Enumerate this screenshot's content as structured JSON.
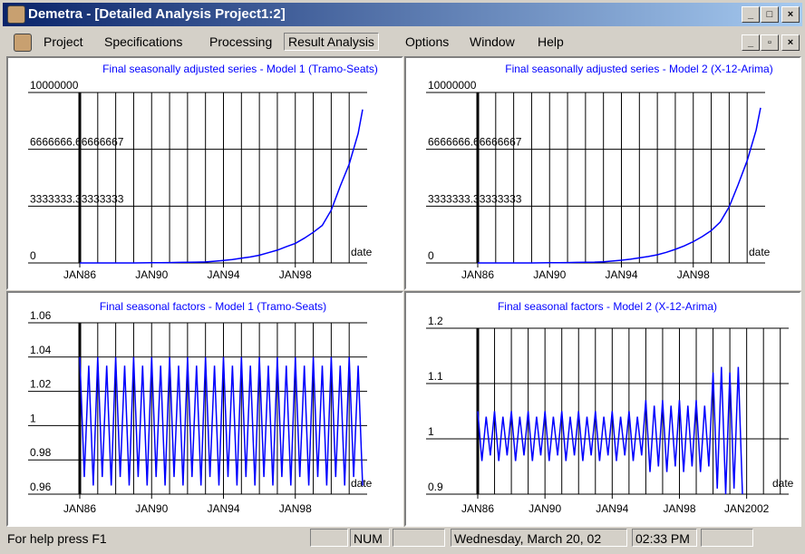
{
  "window": {
    "title": "Demetra - [Detailed Analysis Project1:2]"
  },
  "menu": [
    "Project",
    "Specifications",
    "Processing",
    "Result Analysis",
    "Options",
    "Window",
    "Help"
  ],
  "chart_data": [
    {
      "type": "line",
      "title": "Final seasonally adjusted series - Model 1 (Tramo-Seats)",
      "x_label": "date",
      "x": [
        1986,
        1986.5,
        1987,
        1987.5,
        1988,
        1988.5,
        1989,
        1989.5,
        1990,
        1990.5,
        1991,
        1991.5,
        1992,
        1992.5,
        1993,
        1993.5,
        1994,
        1994.5,
        1995,
        1995.5,
        1996,
        1996.5,
        1997,
        1997.5,
        1998,
        1998.5,
        1999,
        1999.5,
        2000,
        2000.5,
        2001,
        2001.5,
        2001.75
      ],
      "series": [
        {
          "color": "#0000ff",
          "values": [
            0,
            0,
            0,
            0,
            0,
            0,
            0,
            5000,
            10000,
            15000,
            20000,
            30000,
            40000,
            50000,
            60000,
            100000,
            150000,
            200000,
            280000,
            350000,
            450000,
            600000,
            750000,
            950000,
            1150000,
            1450000,
            1800000,
            2200000,
            3100000,
            4500000,
            5800000,
            7600000,
            9000000
          ]
        }
      ],
      "xlim": [
        1986,
        2002
      ],
      "xticks": [
        {
          "value": 1986,
          "label": "JAN86"
        },
        {
          "value": 1990,
          "label": "JAN90"
        },
        {
          "value": 1994,
          "label": "JAN94"
        },
        {
          "value": 1998,
          "label": "JAN98"
        }
      ],
      "xgrid": [
        1986,
        1987,
        1988,
        1989,
        1990,
        1991,
        1992,
        1993,
        1994,
        1995,
        1996,
        1997,
        1998,
        1999,
        2000,
        2001
      ],
      "ylim": [
        0,
        10000000
      ],
      "yticks": [
        0,
        3333333.33333333,
        6666666.66666667,
        10000000
      ]
    },
    {
      "type": "line",
      "title": "Final seasonally adjusted series - Model 2 (X-12-Arima)",
      "x_label": "date",
      "x": [
        1986,
        1986.5,
        1987,
        1987.5,
        1988,
        1988.5,
        1989,
        1989.5,
        1990,
        1990.5,
        1991,
        1991.5,
        1992,
        1992.5,
        1993,
        1993.5,
        1994,
        1994.5,
        1995,
        1995.5,
        1996,
        1996.5,
        1997,
        1997.5,
        1998,
        1998.5,
        1999,
        1999.5,
        2000,
        2000.5,
        2001,
        2001.5,
        2001.75
      ],
      "series": [
        {
          "color": "#0000ff",
          "values": [
            0,
            0,
            0,
            0,
            0,
            0,
            0,
            5000,
            10000,
            15000,
            20000,
            30000,
            40000,
            50000,
            70000,
            110000,
            160000,
            220000,
            300000,
            380000,
            480000,
            620000,
            800000,
            1000000,
            1250000,
            1550000,
            1900000,
            2400000,
            3300000,
            4600000,
            6000000,
            7800000,
            9100000
          ]
        }
      ],
      "xlim": [
        1986,
        2002
      ],
      "xticks": [
        {
          "value": 1986,
          "label": "JAN86"
        },
        {
          "value": 1990,
          "label": "JAN90"
        },
        {
          "value": 1994,
          "label": "JAN94"
        },
        {
          "value": 1998,
          "label": "JAN98"
        }
      ],
      "xgrid": [
        1986,
        1987,
        1988,
        1989,
        1990,
        1991,
        1992,
        1993,
        1994,
        1995,
        1996,
        1997,
        1998,
        1999,
        2000,
        2001
      ],
      "ylim": [
        0,
        10000000
      ],
      "yticks": [
        0,
        3333333.33333333,
        6666666.66666667,
        10000000
      ]
    },
    {
      "type": "line",
      "title": "Final seasonal factors - Model 1 (Tramo-Seats)",
      "x_label": "date",
      "x": [
        1986,
        1986.25,
        1986.5,
        1986.75,
        1987,
        1987.25,
        1987.5,
        1987.75,
        1988,
        1988.25,
        1988.5,
        1988.75,
        1989,
        1989.25,
        1989.5,
        1989.75,
        1990,
        1990.25,
        1990.5,
        1990.75,
        1991,
        1991.25,
        1991.5,
        1991.75,
        1992,
        1992.25,
        1992.5,
        1992.75,
        1993,
        1993.25,
        1993.5,
        1993.75,
        1994,
        1994.25,
        1994.5,
        1994.75,
        1995,
        1995.25,
        1995.5,
        1995.75,
        1996,
        1996.25,
        1996.5,
        1996.75,
        1997,
        1997.25,
        1997.5,
        1997.75,
        1998,
        1998.25,
        1998.5,
        1998.75,
        1999,
        1999.25,
        1999.5,
        1999.75,
        2000,
        2000.25,
        2000.5,
        2000.75,
        2001,
        2001.25,
        2001.5,
        2001.75
      ],
      "series": [
        {
          "color": "#0000ff",
          "values": [
            1.04,
            0.97,
            1.035,
            0.965,
            1.04,
            0.97,
            1.035,
            0.965,
            1.04,
            0.97,
            1.035,
            0.965,
            1.04,
            0.97,
            1.035,
            0.965,
            1.04,
            0.97,
            1.035,
            0.965,
            1.04,
            0.97,
            1.035,
            0.965,
            1.04,
            0.97,
            1.035,
            0.965,
            1.04,
            0.97,
            1.035,
            0.965,
            1.04,
            0.97,
            1.035,
            0.965,
            1.04,
            0.97,
            1.035,
            0.965,
            1.04,
            0.97,
            1.035,
            0.965,
            1.04,
            0.97,
            1.035,
            0.965,
            1.04,
            0.97,
            1.035,
            0.965,
            1.04,
            0.97,
            1.035,
            0.965,
            1.04,
            0.97,
            1.035,
            0.965,
            1.04,
            0.97,
            1.035,
            0.965
          ]
        }
      ],
      "xlim": [
        1986,
        2002
      ],
      "xticks": [
        {
          "value": 1986,
          "label": "JAN86"
        },
        {
          "value": 1990,
          "label": "JAN90"
        },
        {
          "value": 1994,
          "label": "JAN94"
        },
        {
          "value": 1998,
          "label": "JAN98"
        }
      ],
      "xgrid": [
        1986,
        1987,
        1988,
        1989,
        1990,
        1991,
        1992,
        1993,
        1994,
        1995,
        1996,
        1997,
        1998,
        1999,
        2000,
        2001
      ],
      "ylim": [
        0.96,
        1.06
      ],
      "yticks": [
        0.96,
        0.98,
        1,
        1.02,
        1.04,
        1.06
      ]
    },
    {
      "type": "line",
      "title": "Final seasonal factors - Model 2 (X-12-Arima)",
      "x_label": "date",
      "x": [
        1986,
        1986.25,
        1986.5,
        1986.75,
        1987,
        1987.25,
        1987.5,
        1987.75,
        1988,
        1988.25,
        1988.5,
        1988.75,
        1989,
        1989.25,
        1989.5,
        1989.75,
        1990,
        1990.25,
        1990.5,
        1990.75,
        1991,
        1991.25,
        1991.5,
        1991.75,
        1992,
        1992.25,
        1992.5,
        1992.75,
        1993,
        1993.25,
        1993.5,
        1993.75,
        1994,
        1994.25,
        1994.5,
        1994.75,
        1995,
        1995.25,
        1995.5,
        1995.75,
        1996,
        1996.25,
        1996.5,
        1996.75,
        1997,
        1997.25,
        1997.5,
        1997.75,
        1998,
        1998.25,
        1998.5,
        1998.75,
        1999,
        1999.25,
        1999.5,
        1999.75,
        2000,
        2000.25,
        2000.5,
        2000.75,
        2001,
        2001.25,
        2001.5,
        2001.75
      ],
      "series": [
        {
          "color": "#0000ff",
          "values": [
            1.05,
            0.96,
            1.04,
            0.97,
            1.05,
            0.96,
            1.04,
            0.97,
            1.05,
            0.96,
            1.04,
            0.97,
            1.05,
            0.96,
            1.04,
            0.97,
            1.05,
            0.96,
            1.04,
            0.97,
            1.05,
            0.96,
            1.04,
            0.97,
            1.05,
            0.96,
            1.04,
            0.97,
            1.05,
            0.96,
            1.04,
            0.97,
            1.05,
            0.96,
            1.04,
            0.97,
            1.05,
            0.96,
            1.04,
            0.97,
            1.07,
            0.94,
            1.06,
            0.95,
            1.07,
            0.94,
            1.06,
            0.95,
            1.07,
            0.94,
            1.06,
            0.95,
            1.07,
            0.94,
            1.06,
            0.95,
            1.12,
            0.91,
            1.13,
            0.9,
            1.12,
            0.91,
            1.13,
            0.9
          ]
        }
      ],
      "xlim": [
        1986,
        2004.5
      ],
      "xticks": [
        {
          "value": 1986,
          "label": "JAN86"
        },
        {
          "value": 1990,
          "label": "JAN90"
        },
        {
          "value": 1994,
          "label": "JAN94"
        },
        {
          "value": 1998,
          "label": "JAN98"
        },
        {
          "value": 2002,
          "label": "JAN2002"
        }
      ],
      "xgrid": [
        1986,
        1987,
        1988,
        1989,
        1990,
        1991,
        1992,
        1993,
        1994,
        1995,
        1996,
        1997,
        1998,
        1999,
        2000,
        2001,
        2002,
        2003,
        2004
      ],
      "ylim": [
        0.9,
        1.2
      ],
      "yticks": [
        0.9,
        1,
        1.1,
        1.2
      ]
    }
  ],
  "status": {
    "help": "For help press F1",
    "num": "NUM",
    "date": "Wednesday, March 20, 02",
    "time": "02:33 PM"
  }
}
